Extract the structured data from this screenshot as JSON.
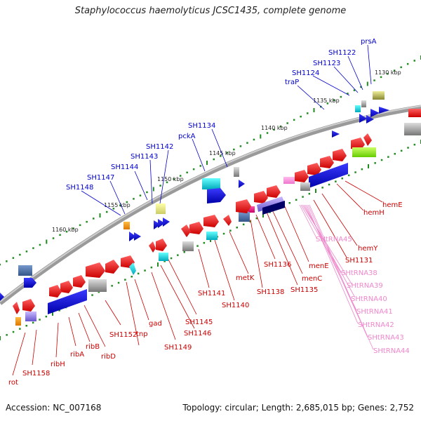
{
  "title": "Staphylococcus haemolyticus JCSC1435, complete genome",
  "accession": "Accession: NC_007168",
  "topology": "Topology: circular; Length: 2,685,015 bp; Genes: 2,752",
  "kbp_labels": [
    "1130 kbp",
    "1135 kbp",
    "1140 kbp",
    "1145 kbp",
    "1150 kbp",
    "1155 kbp",
    "1160 kbp"
  ],
  "top_genes": [
    "prsA",
    "SH1122",
    "SH1123",
    "SH1124",
    "traP",
    "SH1134",
    "pckA",
    "SH1142",
    "SH1143",
    "SH1144",
    "SH1147",
    "SH1148"
  ],
  "bottom_genes": [
    "hemE",
    "hemH",
    "hemY",
    "SH1131",
    "menE",
    "menC",
    "SH1135",
    "SH1136",
    "SH1138",
    "metK",
    "SH1140",
    "SH1141",
    "SH1145",
    "SH1146",
    "SH1149",
    "gad",
    "tnp",
    "SH1152",
    "ribD",
    "ribB",
    "ribA",
    "ribH",
    "SH1158",
    "rot"
  ],
  "rna_genes": [
    "SHtRNA45",
    "SHtRNA38",
    "SHtRNA39",
    "SHtRNA40",
    "SHtRNA41",
    "SHtRNA42",
    "SHtRNA43",
    "SHtRNA44"
  ],
  "colors": {
    "top_label": "#0000cc",
    "bottom_label": "#cc0000",
    "rna_label": "#ee88cc",
    "axis": "#8a8a8a",
    "tick": "#228b22"
  }
}
